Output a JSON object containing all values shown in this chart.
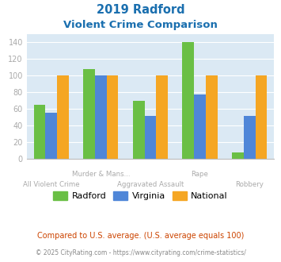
{
  "title_line1": "2019 Radford",
  "title_line2": "Violent Crime Comparison",
  "categories": [
    "All Violent Crime",
    "Murder & Mans...",
    "Aggravated Assault",
    "Rape",
    "Robbery"
  ],
  "radford": [
    65,
    108,
    70,
    140,
    7
  ],
  "virginia": [
    55,
    100,
    51,
    77,
    51
  ],
  "national": [
    100,
    100,
    100,
    100,
    100
  ],
  "bar_color_radford": "#6abf45",
  "bar_color_virginia": "#4f86d8",
  "bar_color_national": "#f5a623",
  "ylim": [
    0,
    150
  ],
  "yticks": [
    0,
    20,
    40,
    60,
    80,
    100,
    120,
    140
  ],
  "background_color": "#dbe9f4",
  "title_color": "#1a6faf",
  "legend_labels": [
    "Radford",
    "Virginia",
    "National"
  ],
  "footnote1": "Compared to U.S. average. (U.S. average equals 100)",
  "footnote2": "© 2025 CityRating.com - https://www.cityrating.com/crime-statistics/",
  "footnote1_color": "#cc4400",
  "footnote2_color": "#888888",
  "tick_color": "#aaaaaa",
  "label_color": "#aaaaaa"
}
